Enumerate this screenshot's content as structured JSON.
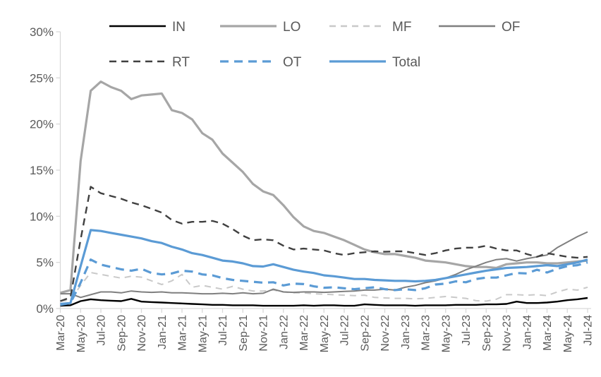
{
  "chart_data": {
    "type": "line",
    "title": "",
    "xlabel": "",
    "ylabel": "",
    "ylim": [
      0,
      30
    ],
    "grid": "off",
    "legend_position": "top",
    "axis_color": "#D9D9D9",
    "tick_label_color": "#595959",
    "legend_text_color": "#595959",
    "y_tick_values": [
      0,
      5,
      10,
      15,
      20,
      25,
      30
    ],
    "y_tick_labels": [
      "0%",
      "5%",
      "10%",
      "15%",
      "20%",
      "25%",
      "30%"
    ],
    "x_tick_labels": [
      "Mar-20",
      "May-20",
      "Jul-20",
      "Sep-20",
      "Nov-20",
      "Jan-21",
      "Mar-21",
      "May-21",
      "Jul-21",
      "Sep-21",
      "Nov-21",
      "Jan-22",
      "Mar-22",
      "May-22",
      "Jul-22",
      "Sep-22",
      "Nov-22",
      "Jan-23",
      "Mar-23",
      "May-23",
      "Jul-23",
      "Sep-23",
      "Nov-23",
      "Jan-24",
      "Mar-24",
      "May-24",
      "Jul-24"
    ],
    "categories": [
      "Mar-20",
      "Apr-20",
      "May-20",
      "Jun-20",
      "Jul-20",
      "Aug-20",
      "Sep-20",
      "Oct-20",
      "Nov-20",
      "Dec-20",
      "Jan-21",
      "Feb-21",
      "Mar-21",
      "Apr-21",
      "May-21",
      "Jun-21",
      "Jul-21",
      "Aug-21",
      "Sep-21",
      "Oct-21",
      "Nov-21",
      "Dec-21",
      "Jan-22",
      "Feb-22",
      "Mar-22",
      "Apr-22",
      "May-22",
      "Jun-22",
      "Jul-22",
      "Aug-22",
      "Sep-22",
      "Oct-22",
      "Nov-22",
      "Dec-22",
      "Jan-23",
      "Feb-23",
      "Mar-23",
      "Apr-23",
      "May-23",
      "Jun-23",
      "Jul-23",
      "Aug-23",
      "Sep-23",
      "Oct-23",
      "Nov-23",
      "Dec-23",
      "Jan-24",
      "Feb-24",
      "Mar-24",
      "Apr-24",
      "May-24",
      "Jun-24",
      "Jul-24"
    ],
    "legend_rows": [
      [
        "IN",
        "LO",
        "MF",
        "OF"
      ],
      [
        "RT",
        "OT",
        "Total"
      ]
    ],
    "series": [
      {
        "name": "IN",
        "color": "#000000",
        "style": "solid",
        "width": 2.4,
        "values": [
          0.3,
          0.35,
          0.8,
          1.0,
          0.9,
          0.85,
          0.8,
          1.05,
          0.75,
          0.7,
          0.65,
          0.6,
          0.55,
          0.5,
          0.45,
          0.4,
          0.4,
          0.35,
          0.35,
          0.35,
          0.3,
          0.3,
          0.3,
          0.3,
          0.35,
          0.3,
          0.35,
          0.35,
          0.3,
          0.3,
          0.45,
          0.4,
          0.35,
          0.35,
          0.35,
          0.3,
          0.35,
          0.35,
          0.35,
          0.4,
          0.4,
          0.4,
          0.45,
          0.45,
          0.5,
          0.75,
          0.6,
          0.6,
          0.65,
          0.75,
          0.9,
          1.0,
          1.15
        ]
      },
      {
        "name": "LO",
        "color": "#A6A6A6",
        "style": "solid",
        "width": 3.2,
        "values": [
          1.7,
          2.0,
          16.0,
          23.6,
          24.6,
          24.0,
          23.6,
          22.7,
          23.1,
          23.2,
          23.3,
          21.5,
          21.2,
          20.5,
          19.0,
          18.3,
          16.8,
          15.8,
          14.8,
          13.5,
          12.7,
          12.3,
          11.2,
          9.9,
          8.9,
          8.4,
          8.2,
          7.8,
          7.4,
          6.9,
          6.4,
          6.1,
          5.9,
          5.9,
          5.7,
          5.5,
          5.2,
          5.1,
          5.0,
          4.8,
          4.6,
          4.5,
          4.5,
          4.4,
          4.8,
          4.9,
          5.0,
          5.0,
          4.9,
          4.9,
          5.0,
          5.1,
          5.2
        ]
      },
      {
        "name": "MF",
        "color": "#C9C9C9",
        "style": "dashed",
        "width": 2.0,
        "values": [
          0.8,
          0.9,
          2.5,
          3.9,
          3.7,
          3.5,
          3.3,
          3.5,
          3.4,
          3.0,
          2.6,
          3.0,
          3.7,
          2.3,
          2.5,
          2.3,
          2.1,
          2.4,
          2.1,
          1.9,
          1.9,
          2.0,
          1.8,
          1.7,
          1.7,
          1.6,
          1.55,
          1.5,
          1.45,
          1.4,
          1.45,
          1.2,
          1.15,
          1.1,
          1.1,
          1.05,
          1.1,
          1.2,
          1.3,
          1.2,
          1.1,
          0.85,
          0.8,
          1.0,
          1.5,
          1.5,
          1.45,
          1.5,
          1.4,
          1.8,
          2.1,
          2.0,
          2.3
        ]
      },
      {
        "name": "OF",
        "color": "#7F7F7F",
        "style": "solid",
        "width": 2.0,
        "values": [
          1.6,
          1.6,
          1.2,
          1.5,
          1.8,
          1.8,
          1.7,
          1.9,
          1.8,
          1.75,
          1.8,
          1.7,
          1.7,
          1.65,
          1.6,
          1.6,
          1.65,
          1.6,
          1.7,
          1.6,
          1.65,
          2.1,
          1.8,
          1.75,
          1.8,
          1.8,
          1.75,
          1.8,
          1.85,
          1.9,
          2.0,
          2.0,
          2.1,
          2.0,
          2.3,
          2.5,
          2.8,
          3.0,
          3.3,
          3.7,
          4.2,
          4.6,
          5.0,
          5.3,
          5.4,
          5.15,
          5.4,
          5.6,
          5.8,
          6.6,
          7.2,
          7.8,
          8.3
        ]
      },
      {
        "name": "RT",
        "color": "#404040",
        "style": "dashed",
        "width": 2.4,
        "values": [
          0.8,
          1.2,
          7.5,
          13.2,
          12.5,
          12.2,
          11.9,
          11.5,
          11.2,
          10.8,
          10.4,
          9.6,
          9.2,
          9.4,
          9.4,
          9.5,
          9.2,
          8.6,
          7.9,
          7.4,
          7.5,
          7.4,
          6.8,
          6.4,
          6.5,
          6.4,
          6.3,
          6.0,
          5.8,
          6.0,
          6.1,
          6.2,
          6.15,
          6.2,
          6.2,
          6.0,
          5.8,
          6.0,
          6.3,
          6.5,
          6.6,
          6.6,
          6.8,
          6.5,
          6.3,
          6.3,
          5.9,
          5.6,
          6.0,
          5.8,
          5.6,
          5.5,
          5.6
        ]
      },
      {
        "name": "OT",
        "color": "#5B9BD5",
        "style": "dashed",
        "width": 3.2,
        "values": [
          0.5,
          0.6,
          2.8,
          5.3,
          4.75,
          4.5,
          4.25,
          4.1,
          4.3,
          3.85,
          3.7,
          3.8,
          4.1,
          4.0,
          3.7,
          3.6,
          3.3,
          3.1,
          3.0,
          2.9,
          2.8,
          2.85,
          2.5,
          2.7,
          2.65,
          2.4,
          2.25,
          2.3,
          2.2,
          2.1,
          2.2,
          2.3,
          2.1,
          2.0,
          2.1,
          2.0,
          2.2,
          2.6,
          2.7,
          2.95,
          2.85,
          3.2,
          3.35,
          3.35,
          3.6,
          3.85,
          3.8,
          4.2,
          3.9,
          4.3,
          4.6,
          4.7,
          5.0
        ]
      },
      {
        "name": "Total",
        "color": "#5B9BD5",
        "style": "solid",
        "width": 3.2,
        "values": [
          0.4,
          0.6,
          4.6,
          8.5,
          8.4,
          8.2,
          8.0,
          7.8,
          7.6,
          7.3,
          7.1,
          6.7,
          6.4,
          6.0,
          5.8,
          5.5,
          5.2,
          5.1,
          4.9,
          4.6,
          4.55,
          4.8,
          4.5,
          4.2,
          4.0,
          3.85,
          3.6,
          3.5,
          3.35,
          3.2,
          3.2,
          3.1,
          3.05,
          3.0,
          3.0,
          2.95,
          3.0,
          3.1,
          3.3,
          3.5,
          3.7,
          3.9,
          4.1,
          4.25,
          4.4,
          4.45,
          4.5,
          4.6,
          4.7,
          4.6,
          4.8,
          5.0,
          5.3
        ]
      }
    ]
  }
}
